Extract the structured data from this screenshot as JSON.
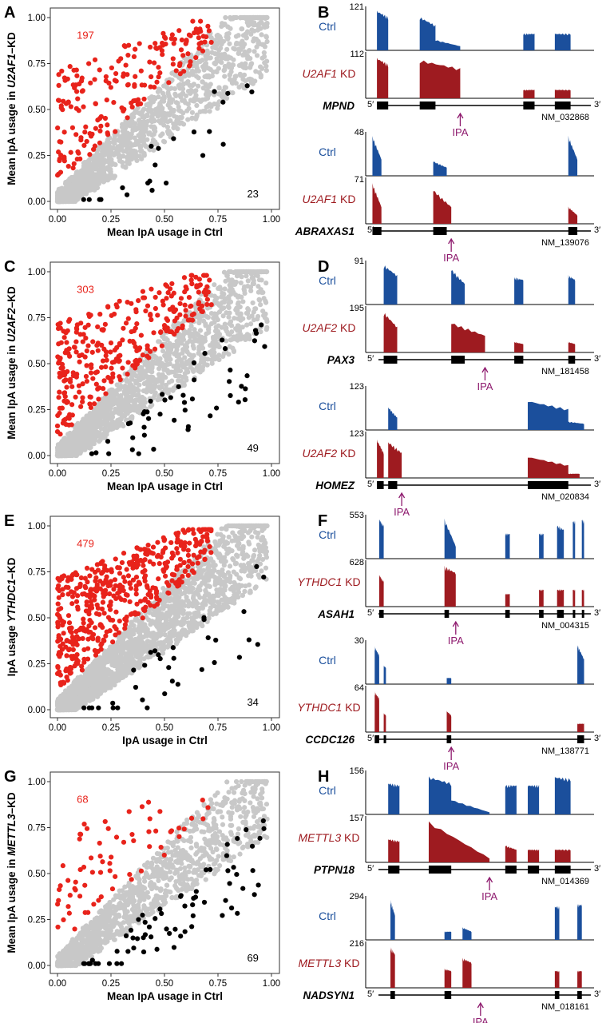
{
  "colors": {
    "up": "#e8231b",
    "down": "#000000",
    "background_points": "#c8c8c8",
    "ctrl_track": "#1b4f9c",
    "kd_track": "#9e1b20",
    "ipa_arrow": "#8e1a6e"
  },
  "chart_data": [
    {
      "panel": "A",
      "type": "scatter",
      "xlabel": "Mean IpA usage in Ctrl",
      "ylabel_pre": "Mean IpA usage in ",
      "ylabel_gene": "U2AF1",
      "ylabel_post": "–KD",
      "xlim": [
        0,
        1
      ],
      "ylim": [
        0,
        1
      ],
      "x_ticks": [
        "0.00",
        "0.25",
        "0.50",
        "0.75",
        "1.00"
      ],
      "y_ticks": [
        "0.00",
        "0.25",
        "0.50",
        "0.75",
        "1.00"
      ],
      "count_up": "197",
      "count_down": "23",
      "n_bg": 1400,
      "n_up": 197,
      "n_down": 23,
      "seed": 11
    },
    {
      "panel": "C",
      "type": "scatter",
      "xlabel": "Mean IpA usage in Ctrl",
      "ylabel_pre": "Mean IpA usage in ",
      "ylabel_gene": "U2AF2",
      "ylabel_post": "–KD",
      "xlim": [
        0,
        1
      ],
      "ylim": [
        0,
        1
      ],
      "x_ticks": [
        "0.00",
        "0.25",
        "0.50",
        "0.75",
        "1.00"
      ],
      "y_ticks": [
        "0.00",
        "0.25",
        "0.50",
        "0.75",
        "1.00"
      ],
      "count_up": "303",
      "count_down": "49",
      "n_bg": 1600,
      "n_up": 303,
      "n_down": 49,
      "seed": 23
    },
    {
      "panel": "E",
      "type": "scatter",
      "xlabel": "IpA usage in Ctrl",
      "ylabel_pre": "IpA usage ",
      "ylabel_gene": "YTHDC1",
      "ylabel_post": "–KD",
      "xlim": [
        0,
        1
      ],
      "ylim": [
        0,
        1
      ],
      "x_ticks": [
        "0.00",
        "0.25",
        "0.50",
        "0.75",
        "1.00"
      ],
      "y_ticks": [
        "0.00",
        "0.25",
        "0.50",
        "0.75",
        "1.00"
      ],
      "count_up": "479",
      "count_down": "34",
      "n_bg": 2000,
      "n_up": 479,
      "n_down": 34,
      "seed": 37
    },
    {
      "panel": "G",
      "type": "scatter",
      "xlabel": "Mean IpA usage in Ctrl",
      "ylabel_pre": "Mean IpA usage in ",
      "ylabel_gene": "METTL3",
      "ylabel_post": "–KD",
      "xlim": [
        0,
        1
      ],
      "ylim": [
        0,
        1
      ],
      "x_ticks": [
        "0.00",
        "0.25",
        "0.50",
        "0.75",
        "1.00"
      ],
      "y_ticks": [
        "0.00",
        "0.25",
        "0.50",
        "0.75",
        "1.00"
      ],
      "count_up": "68",
      "count_down": "69",
      "n_bg": 1300,
      "n_up": 68,
      "n_down": 69,
      "seed": 53
    }
  ],
  "panels_right": [
    {
      "panel": "B",
      "kd": "U2AF1",
      "genes": [
        {
          "name": "MPND",
          "acc": "NM_032868",
          "ctrl_max": "121",
          "kd_max": "112",
          "ipa": "IPA",
          "strand": "+",
          "ipa_x": 0.42,
          "exons": [
            [
              0.05,
              0.1
            ],
            [
              0.24,
              0.31
            ],
            [
              0.7,
              0.75
            ],
            [
              0.84,
              0.91
            ]
          ],
          "ctrl": [
            [
              0.05,
              0.1,
              0.95,
              0.8
            ],
            [
              0.24,
              0.31,
              0.8,
              0.6
            ],
            [
              0.31,
              0.42,
              0.25,
              0.1
            ],
            [
              0.7,
              0.75,
              0.4,
              0.4
            ],
            [
              0.84,
              0.91,
              0.4,
              0.4
            ]
          ],
          "kd": [
            [
              0.05,
              0.1,
              0.95,
              0.8
            ],
            [
              0.24,
              0.42,
              0.9,
              0.7
            ],
            [
              0.7,
              0.75,
              0.2,
              0.2
            ],
            [
              0.84,
              0.91,
              0.2,
              0.2
            ]
          ]
        },
        {
          "name": "ABRAXAS1",
          "acc": "NM_139076",
          "ctrl_max": "48",
          "kd_max": "71",
          "ipa": "IPA",
          "strand": "+",
          "ipa_x": 0.38,
          "exons": [
            [
              0.03,
              0.07
            ],
            [
              0.3,
              0.36
            ],
            [
              0.9,
              0.94
            ]
          ],
          "ctrl": [
            [
              0.03,
              0.07,
              0.95,
              0.4
            ],
            [
              0.3,
              0.36,
              0.35,
              0.2
            ],
            [
              0.9,
              0.94,
              0.95,
              0.4
            ]
          ],
          "kd": [
            [
              0.03,
              0.07,
              0.95,
              0.4
            ],
            [
              0.3,
              0.38,
              0.8,
              0.4
            ],
            [
              0.9,
              0.94,
              0.4,
              0.2
            ]
          ]
        }
      ]
    },
    {
      "panel": "D",
      "kd": "U2AF2",
      "genes": [
        {
          "name": "PAX3",
          "acc": "NM_181458",
          "ctrl_max": "91",
          "kd_max": "195",
          "ipa": "IPA",
          "strand": "+",
          "ipa_x": 0.53,
          "exons": [
            [
              0.08,
              0.14
            ],
            [
              0.38,
              0.44
            ],
            [
              0.66,
              0.7
            ],
            [
              0.9,
              0.93
            ]
          ],
          "ctrl": [
            [
              0.08,
              0.14,
              0.95,
              0.7
            ],
            [
              0.38,
              0.44,
              0.85,
              0.5
            ],
            [
              0.66,
              0.7,
              0.65,
              0.6
            ],
            [
              0.9,
              0.93,
              0.7,
              0.6
            ]
          ],
          "kd": [
            [
              0.08,
              0.14,
              0.95,
              0.6
            ],
            [
              0.38,
              0.53,
              0.7,
              0.4
            ],
            [
              0.66,
              0.7,
              0.25,
              0.2
            ],
            [
              0.9,
              0.93,
              0.25,
              0.2
            ]
          ]
        },
        {
          "name": "HOMEZ",
          "acc": "NM_020834",
          "ctrl_max": "123",
          "kd_max": "123",
          "ipa": "IPA",
          "strand": "-",
          "ipa_x": 0.16,
          "exons": [
            [
              0.05,
              0.08
            ],
            [
              0.1,
              0.14
            ],
            [
              0.72,
              0.9
            ]
          ],
          "ctrl": [
            [
              0.1,
              0.14,
              0.55,
              0.3
            ],
            [
              0.72,
              0.9,
              0.7,
              0.5
            ],
            [
              0.9,
              0.97,
              0.2,
              0.15
            ]
          ],
          "kd": [
            [
              0.05,
              0.08,
              0.9,
              0.6
            ],
            [
              0.1,
              0.16,
              0.85,
              0.6
            ],
            [
              0.72,
              0.9,
              0.5,
              0.3
            ],
            [
              0.9,
              0.95,
              0.1,
              0.1
            ]
          ]
        }
      ]
    },
    {
      "panel": "F",
      "kd": "YTHDC1",
      "genes": [
        {
          "name": "ASAH1",
          "acc": "NM_004315",
          "ctrl_max": "553",
          "kd_max": "628",
          "ipa": "IPA",
          "strand": "+",
          "ipa_x": 0.4,
          "exons": [
            [
              0.06,
              0.08
            ],
            [
              0.35,
              0.37
            ],
            [
              0.62,
              0.64
            ],
            [
              0.77,
              0.79
            ],
            [
              0.85,
              0.88
            ],
            [
              0.92,
              0.93
            ],
            [
              0.96,
              0.97
            ]
          ],
          "ctrl": [
            [
              0.06,
              0.08,
              0.95,
              0.8
            ],
            [
              0.35,
              0.4,
              0.95,
              0.3
            ],
            [
              0.62,
              0.64,
              0.6,
              0.6
            ],
            [
              0.77,
              0.79,
              0.6,
              0.6
            ],
            [
              0.85,
              0.88,
              0.8,
              0.7
            ],
            [
              0.92,
              0.93,
              0.9,
              0.9
            ],
            [
              0.96,
              0.97,
              0.95,
              0.9
            ]
          ],
          "kd": [
            [
              0.06,
              0.08,
              0.75,
              0.6
            ],
            [
              0.35,
              0.4,
              0.95,
              0.8
            ],
            [
              0.62,
              0.64,
              0.3,
              0.3
            ],
            [
              0.77,
              0.79,
              0.4,
              0.4
            ],
            [
              0.85,
              0.88,
              0.4,
              0.4
            ],
            [
              0.92,
              0.93,
              0.4,
              0.4
            ],
            [
              0.96,
              0.97,
              0.4,
              0.4
            ]
          ]
        },
        {
          "name": "CCDC126",
          "acc": "NM_138771",
          "ctrl_max": "30",
          "kd_max": "64",
          "ipa": "IPA",
          "strand": "+",
          "ipa_x": 0.38,
          "exons": [
            [
              0.04,
              0.06
            ],
            [
              0.08,
              0.09
            ],
            [
              0.36,
              0.38
            ],
            [
              0.94,
              0.97
            ]
          ],
          "ctrl": [
            [
              0.04,
              0.06,
              0.9,
              0.7
            ],
            [
              0.08,
              0.09,
              0.45,
              0.4
            ],
            [
              0.36,
              0.38,
              0.15,
              0.15
            ],
            [
              0.94,
              0.97,
              0.95,
              0.6
            ]
          ],
          "kd": [
            [
              0.04,
              0.06,
              0.95,
              0.8
            ],
            [
              0.08,
              0.09,
              0.45,
              0.4
            ],
            [
              0.36,
              0.38,
              0.5,
              0.4
            ],
            [
              0.94,
              0.97,
              0.2,
              0.2
            ]
          ]
        }
      ]
    },
    {
      "panel": "H",
      "kd": "METTL3",
      "genes": [
        {
          "name": "PTPN18",
          "acc": "NM_014369",
          "ctrl_max": "156",
          "kd_max": "157",
          "ipa": "IPA",
          "strand": "+",
          "ipa_x": 0.55,
          "exons": [
            [
              0.1,
              0.15
            ],
            [
              0.28,
              0.38
            ],
            [
              0.62,
              0.67
            ],
            [
              0.72,
              0.77
            ],
            [
              0.84,
              0.91
            ]
          ],
          "ctrl": [
            [
              0.1,
              0.15,
              0.75,
              0.7
            ],
            [
              0.28,
              0.38,
              0.9,
              0.75
            ],
            [
              0.38,
              0.55,
              0.35,
              0.05
            ],
            [
              0.62,
              0.67,
              0.7,
              0.7
            ],
            [
              0.72,
              0.77,
              0.7,
              0.7
            ],
            [
              0.84,
              0.91,
              0.9,
              0.85
            ]
          ],
          "kd": [
            [
              0.1,
              0.15,
              0.55,
              0.5
            ],
            [
              0.28,
              0.55,
              0.95,
              0.1
            ],
            [
              0.62,
              0.67,
              0.4,
              0.3
            ],
            [
              0.72,
              0.77,
              0.3,
              0.3
            ],
            [
              0.84,
              0.91,
              0.3,
              0.3
            ]
          ]
        },
        {
          "name": "NADSYN1",
          "acc": "NM_018161",
          "ctrl_max": "294",
          "kd_max": "216",
          "ipa": "IPA",
          "strand": "+",
          "ipa_x": 0.51,
          "exons": [
            [
              0.11,
              0.13
            ],
            [
              0.35,
              0.38
            ],
            [
              0.84,
              0.86
            ],
            [
              0.94,
              0.96
            ]
          ],
          "ctrl": [
            [
              0.11,
              0.13,
              0.95,
              0.6
            ],
            [
              0.35,
              0.38,
              0.2,
              0.2
            ],
            [
              0.43,
              0.47,
              0.3,
              0.2
            ],
            [
              0.84,
              0.86,
              0.8,
              0.8
            ],
            [
              0.94,
              0.96,
              0.85,
              0.85
            ]
          ],
          "kd": [
            [
              0.11,
              0.13,
              0.95,
              0.8
            ],
            [
              0.35,
              0.38,
              0.45,
              0.4
            ],
            [
              0.43,
              0.47,
              0.7,
              0.6
            ],
            [
              0.84,
              0.86,
              0.4,
              0.4
            ],
            [
              0.94,
              0.96,
              0.4,
              0.4
            ]
          ]
        }
      ]
    }
  ],
  "labels": {
    "ctrl": "Ctrl",
    "kd_suffix": " KD",
    "five": "5′",
    "three": "3′"
  }
}
